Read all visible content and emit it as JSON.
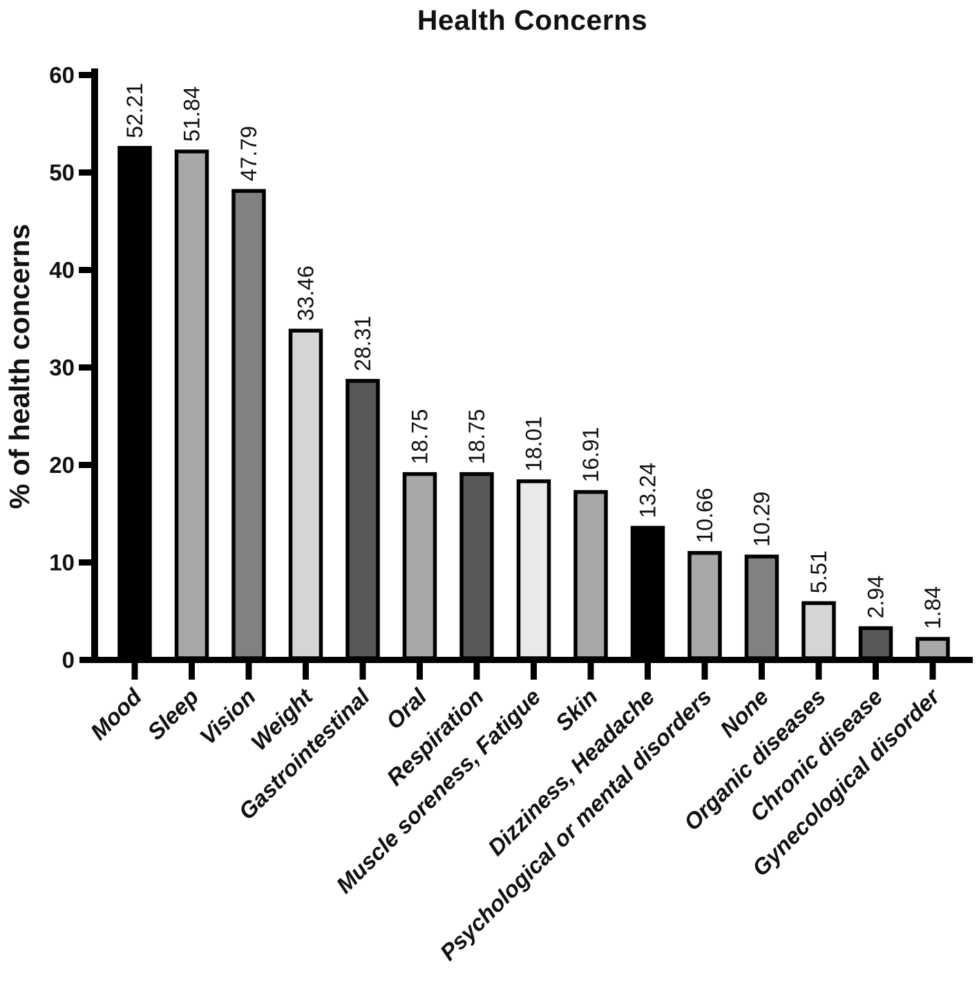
{
  "figure": {
    "background_color": "#ffffff",
    "axis_color": "#000000",
    "text_color": "#111111"
  },
  "chart_data": {
    "type": "bar",
    "title": "Health Concerns",
    "xlabel": "",
    "ylabel": "% of health concerns",
    "ylim": [
      0,
      60
    ],
    "yticks": [
      0,
      10,
      20,
      30,
      40,
      50,
      60
    ],
    "grid": false,
    "legend": "none",
    "categories": [
      "Mood",
      "Sleep",
      "Vision",
      "Weight",
      "Gastrointestinal",
      "Oral",
      "Respiration",
      "Muscle soreness, Fatigue",
      "Skin",
      "Dizziness, Headache",
      "Psychological or mental disorders",
      "None",
      "Organic diseases",
      "Chronic disease",
      "Gynecological disorder"
    ],
    "values": [
      52.21,
      51.84,
      47.79,
      33.46,
      28.31,
      18.75,
      18.75,
      18.01,
      16.91,
      13.24,
      10.66,
      10.29,
      5.51,
      2.94,
      1.84
    ],
    "value_labels": [
      "52.21",
      "51.84",
      "47.79",
      "33.46",
      "28.31",
      "18.75",
      "18.75",
      "18.01",
      "16.91",
      "13.24",
      "10.66",
      "10.29",
      "5.51",
      "2.94",
      "1.84"
    ],
    "bar_colors": [
      "#000000",
      "#a8a8a8",
      "#818181",
      "#d5d5d5",
      "#585858",
      "#a8a8a8",
      "#585858",
      "#e9e9e9",
      "#a8a8a8",
      "#000000",
      "#a8a8a8",
      "#818181",
      "#d5d5d5",
      "#585858",
      "#a8a8a8"
    ],
    "bar_outline_color": "#000000"
  }
}
